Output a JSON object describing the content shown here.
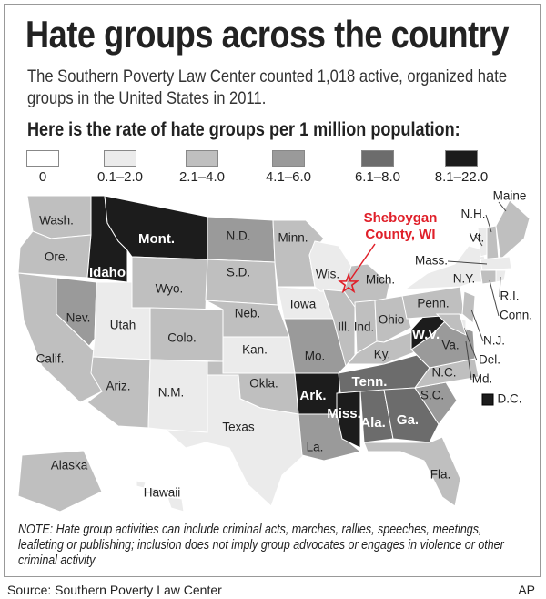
{
  "header": {
    "title": "Hate groups across the country",
    "subtitle": "The Southern Poverty Law Center counted 1,018 active, organized hate groups in the United States in 2011.",
    "heading": "Here is the rate of hate groups per 1 million population:"
  },
  "legend": {
    "items": [
      {
        "label": "0",
        "color": "#ffffff"
      },
      {
        "label": "0.1–2.0",
        "color": "#ebebeb"
      },
      {
        "label": "2.1–4.0",
        "color": "#bfbfbf"
      },
      {
        "label": "4.1–6.0",
        "color": "#9a9a9a"
      },
      {
        "label": "6.1–8.0",
        "color": "#6c6c6c"
      },
      {
        "label": "8.1–22.0",
        "color": "#1c1c1c"
      }
    ]
  },
  "map": {
    "states": [
      {
        "label": "Wash.",
        "color": "#bfbfbf"
      },
      {
        "label": "Ore.",
        "color": "#bfbfbf"
      },
      {
        "label": "Calif.",
        "color": "#bfbfbf"
      },
      {
        "label": "Nev.",
        "color": "#9a9a9a"
      },
      {
        "label": "Idaho",
        "color": "#1c1c1c"
      },
      {
        "label": "Mont.",
        "color": "#1c1c1c"
      },
      {
        "label": "Wyo.",
        "color": "#bfbfbf"
      },
      {
        "label": "Utah",
        "color": "#ebebeb"
      },
      {
        "label": "Colo.",
        "color": "#bfbfbf"
      },
      {
        "label": "Ariz.",
        "color": "#bfbfbf"
      },
      {
        "label": "N.M.",
        "color": "#ebebeb"
      },
      {
        "label": "N.D.",
        "color": "#9a9a9a"
      },
      {
        "label": "S.D.",
        "color": "#bfbfbf"
      },
      {
        "label": "Neb.",
        "color": "#bfbfbf"
      },
      {
        "label": "Kan.",
        "color": "#ebebeb"
      },
      {
        "label": "Okla.",
        "color": "#bfbfbf"
      },
      {
        "label": "Texas",
        "color": "#ebebeb"
      },
      {
        "label": "Minn.",
        "color": "#bfbfbf"
      },
      {
        "label": "Iowa",
        "color": "#ebebeb"
      },
      {
        "label": "Mo.",
        "color": "#9a9a9a"
      },
      {
        "label": "Ark.",
        "color": "#1c1c1c"
      },
      {
        "label": "La.",
        "color": "#9a9a9a"
      },
      {
        "label": "Wis.",
        "color": "#ebebeb"
      },
      {
        "label": "Ill.",
        "color": "#bfbfbf"
      },
      {
        "label": "Mich.",
        "color": "#bfbfbf"
      },
      {
        "label": "Ind.",
        "color": "#bfbfbf"
      },
      {
        "label": "Ohio",
        "color": "#bfbfbf"
      },
      {
        "label": "Ky.",
        "color": "#bfbfbf"
      },
      {
        "label": "Tenn.",
        "color": "#6c6c6c"
      },
      {
        "label": "Miss.",
        "color": "#1c1c1c"
      },
      {
        "label": "Ala.",
        "color": "#6c6c6c"
      },
      {
        "label": "Ga.",
        "color": "#6c6c6c"
      },
      {
        "label": "Fla.",
        "color": "#bfbfbf"
      },
      {
        "label": "S.C.",
        "color": "#9a9a9a"
      },
      {
        "label": "N.C.",
        "color": "#bfbfbf"
      },
      {
        "label": "Va.",
        "color": "#9a9a9a"
      },
      {
        "label": "W.V.",
        "color": "#1c1c1c"
      },
      {
        "label": "Penn.",
        "color": "#bfbfbf"
      },
      {
        "label": "N.Y.",
        "color": "#ebebeb"
      },
      {
        "label": "Vt.",
        "color": "#ebebeb"
      },
      {
        "label": "N.H.",
        "color": "#bfbfbf"
      },
      {
        "label": "Maine",
        "color": "#bfbfbf"
      },
      {
        "label": "Mass.",
        "color": "#ebebeb"
      },
      {
        "label": "Conn.",
        "color": "#bfbfbf"
      },
      {
        "label": "R.I.",
        "color": "#ebebeb"
      },
      {
        "label": "N.J.",
        "color": "#bfbfbf"
      },
      {
        "label": "Del.",
        "color": "#ebebeb"
      },
      {
        "label": "Md.",
        "color": "#bfbfbf"
      },
      {
        "label": "D.C.",
        "color": "#1c1c1c"
      },
      {
        "label": "Alaska",
        "color": "#bfbfbf"
      },
      {
        "label": "Hawaii",
        "color": "#ebebeb"
      }
    ],
    "annotation": {
      "lines": [
        "Sheboygan",
        "County, WI"
      ],
      "color": "#e0202a"
    }
  },
  "note": "NOTE: Hate group activities can include criminal acts, marches, rallies, speeches, meetings, leafleting or publishing; inclusion does not imply group advocates or engages in violence or other criminal activity",
  "footer": {
    "source": "Source: Southern Poverty Law Center",
    "credit": "AP"
  }
}
